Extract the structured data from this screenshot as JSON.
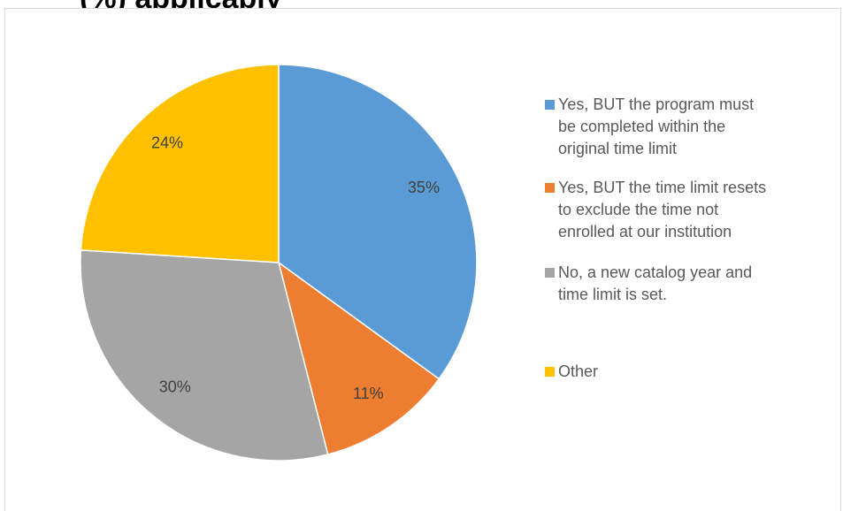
{
  "title_fragment": "(%) applicably",
  "chart_data": {
    "type": "pie",
    "start_angle_deg": 0,
    "direction": "clockwise",
    "legend_position": "right",
    "series": [
      {
        "name": "Yes, BUT the program must be completed within the original time limit",
        "value": 35,
        "label": "35%",
        "color": "#5B9BD5"
      },
      {
        "name": "Yes, BUT the time limit resets to exclude the time not enrolled at our institution",
        "value": 11,
        "label": "11%",
        "color": "#ED7D31"
      },
      {
        "name": "No, a new catalog year and time limit is set.",
        "value": 30,
        "label": "30%",
        "color": "#A5A5A5"
      },
      {
        "name": "Other",
        "value": 24,
        "label": "24%",
        "color": "#FFC000"
      }
    ]
  },
  "legend": {
    "items": [
      "Yes, BUT the program must\nbe completed within the\noriginal time limit",
      "Yes, BUT the time limit resets\nto exclude the time not\nenrolled at our institution",
      "No, a new catalog year and\ntime limit is set.",
      "Other"
    ]
  }
}
